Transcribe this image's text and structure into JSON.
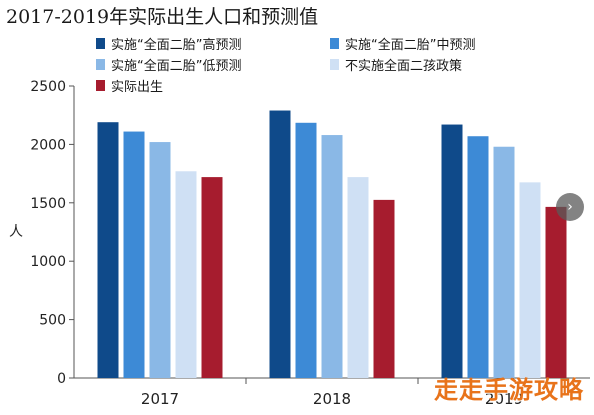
{
  "chart_data": {
    "type": "bar",
    "title": "2017-2019年实际出生人口和预测值",
    "ylabel": "人",
    "xlabel": "",
    "ylim": [
      0,
      2500
    ],
    "yticks": [
      0,
      500,
      1000,
      1500,
      2000,
      2500
    ],
    "grid": false,
    "legend_position": "top",
    "categories": [
      "2017",
      "2018",
      "2019"
    ],
    "series": [
      {
        "name": "实施“全面二胎”高预测",
        "color": "#0f4a8a",
        "values": [
          2190,
          2290,
          2170
        ]
      },
      {
        "name": "实施“全面二胎”中预测",
        "color": "#3d8ad6",
        "values": [
          2110,
          2185,
          2070
        ]
      },
      {
        "name": "实施“全面二胎”低预测",
        "color": "#8ab8e6",
        "values": [
          2020,
          2080,
          1980
        ]
      },
      {
        "name": "不实施全面二孩政策",
        "color": "#cfe0f4",
        "values": [
          1770,
          1720,
          1675
        ]
      },
      {
        "name": "实际出生",
        "color": "#a61c2e",
        "values": [
          1720,
          1525,
          1465
        ]
      }
    ]
  },
  "watermark": {
    "text": "走走手游攻略"
  },
  "nav": {
    "icon": "chevron-right-icon",
    "glyph": "›"
  }
}
